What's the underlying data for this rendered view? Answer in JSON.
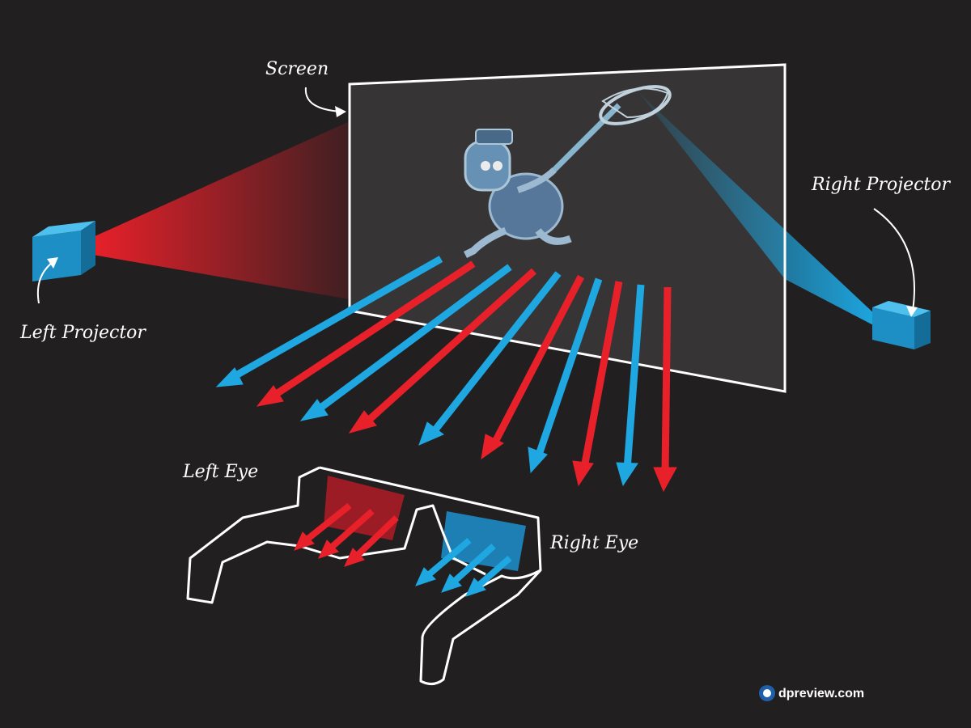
{
  "labels": {
    "screen": "Screen",
    "left_projector": "Left Projector",
    "right_projector": "Right Projector",
    "left_eye": "Left Eye",
    "right_eye": "Right Eye"
  },
  "brand": {
    "text": "dpreview.com",
    "logo": "dpreview-logo-icon"
  },
  "colors": {
    "background": "#221f20",
    "red": "#e8202a",
    "blue": "#1ea7e1",
    "white": "#ffffff",
    "lens_red": "#9b1c24",
    "lens_blue": "#1d7fb3"
  },
  "illustration": {
    "subject": "cartoon-character-with-net-icon"
  }
}
